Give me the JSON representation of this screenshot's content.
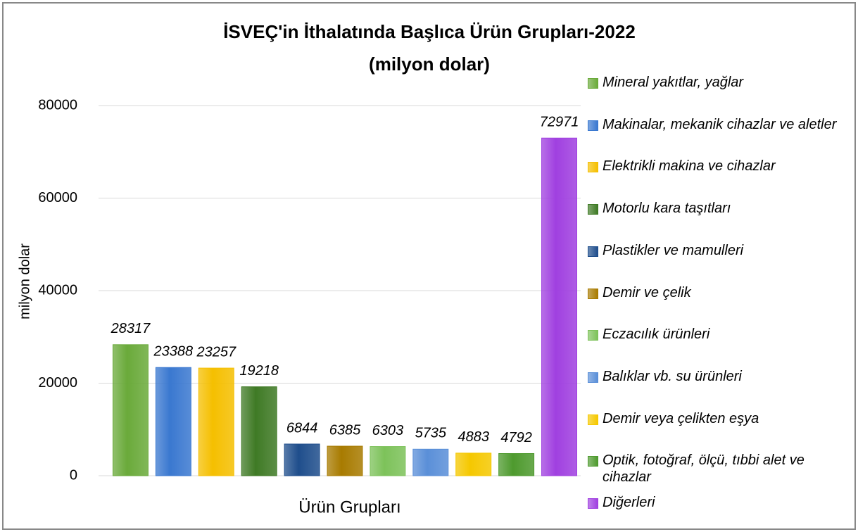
{
  "chart_data": {
    "type": "bar",
    "title": "İSVEÇ'in İthalatında Başlıca Ürün Grupları-2022",
    "subtitle": "(milyon dolar)",
    "x_label": "Ürün Grupları",
    "y_label": "milyon dolar",
    "categories": [
      "Mineral yakıtlar, yağlar",
      "Makinalar, mekanik cihazlar ve aletler",
      "Elektrikli makina ve cihazlar",
      "Motorlu kara taşıtları",
      "Plastikler ve mamulleri",
      "Demir ve çelik",
      "Eczacılık ürünleri",
      "Balıklar vb. su ürünleri",
      "Demir veya çelikten eşya",
      "Optik, fotoğraf, ölçü, tıbbi alet ve cihazlar",
      "Diğerleri"
    ],
    "values": [
      28317,
      23388,
      23257,
      19218,
      6844,
      6385,
      6303,
      5735,
      4883,
      4792,
      72971
    ],
    "colors": [
      "#6aaa3a",
      "#3a78d0",
      "#f5bf00",
      "#3f7a25",
      "#1f4e8c",
      "#a87b00",
      "#7dc25a",
      "#5a8fd8",
      "#f5c800",
      "#4e9a2e",
      "#a040e0"
    ],
    "ylim": [
      0,
      80000
    ],
    "yticks": [
      0,
      20000,
      40000,
      60000,
      80000
    ],
    "grid": true,
    "legend": "right"
  }
}
